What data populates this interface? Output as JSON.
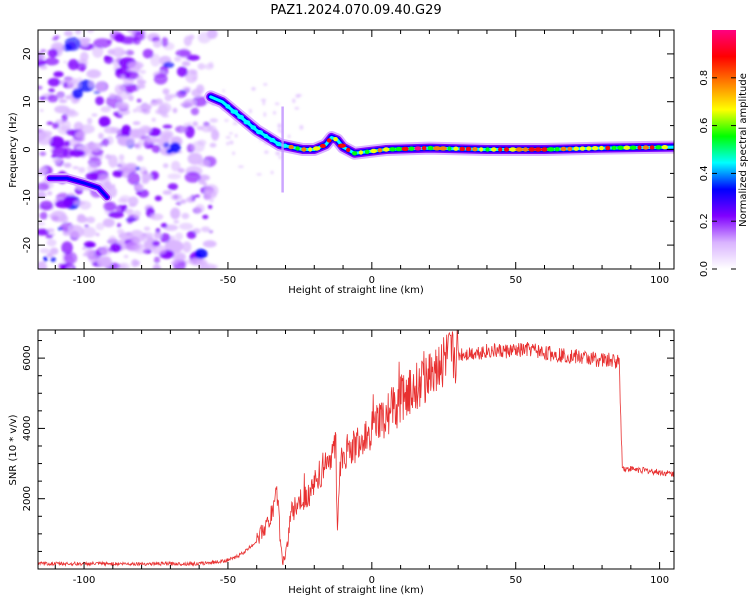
{
  "figure": {
    "title": "PAZ1.2024.070.09.40.G29"
  },
  "chart_data": [
    {
      "type": "heatmap",
      "xlabel": "Height of straight line (km)",
      "ylabel": "Frequency (Hz)",
      "xlim": [
        -116,
        105
      ],
      "ylim": [
        -25,
        25
      ],
      "xticks": [
        -100,
        -50,
        0,
        50,
        100
      ],
      "yticks": [
        -20,
        -10,
        0,
        10,
        20
      ],
      "ridge": [
        {
          "x": -56,
          "y": 11
        },
        {
          "x": -52,
          "y": 10
        },
        {
          "x": -48,
          "y": 8
        },
        {
          "x": -44,
          "y": 6
        },
        {
          "x": -40,
          "y": 4
        },
        {
          "x": -36,
          "y": 2.5
        },
        {
          "x": -32,
          "y": 1
        },
        {
          "x": -28,
          "y": 0.5
        },
        {
          "x": -24,
          "y": 0
        },
        {
          "x": -20,
          "y": 0
        },
        {
          "x": -16,
          "y": 1
        },
        {
          "x": -14,
          "y": 2.5
        },
        {
          "x": -12,
          "y": 2
        },
        {
          "x": -10,
          "y": 0.5
        },
        {
          "x": -6,
          "y": -0.8
        },
        {
          "x": -2,
          "y": -0.5
        },
        {
          "x": 5,
          "y": 0
        },
        {
          "x": 20,
          "y": 0.3
        },
        {
          "x": 40,
          "y": 0
        },
        {
          "x": 60,
          "y": 0
        },
        {
          "x": 80,
          "y": 0.3
        },
        {
          "x": 105,
          "y": 0.5
        }
      ],
      "secondary_ridge": [
        {
          "x": -112,
          "y": -6
        },
        {
          "x": -106,
          "y": -6
        },
        {
          "x": -100,
          "y": -7
        },
        {
          "x": -95,
          "y": -8
        },
        {
          "x": -92,
          "y": -10
        }
      ],
      "colorbar": {
        "label": "Normalized spectral amplitude",
        "range": [
          0,
          1
        ],
        "ticks": [
          "0.0",
          "0.2",
          "0.4",
          "0.6",
          "0.8"
        ],
        "colors": [
          "#ffffff",
          "#d9b3ff",
          "#8000ff",
          "#0000ff",
          "#00ffff",
          "#00ff00",
          "#ffff00",
          "#ff8000",
          "#ff0000",
          "#ff0080"
        ]
      }
    },
    {
      "type": "line",
      "xlabel": "Height of straight line (km)",
      "ylabel": "SNR (10 * v/v)",
      "xlim": [
        -116,
        105
      ],
      "ylim": [
        0,
        6800
      ],
      "xticks": [
        -100,
        -50,
        0,
        50,
        100
      ],
      "yticks": [
        2000,
        4000,
        6000
      ],
      "series": [
        {
          "color": "#e83030",
          "x": [
            -116,
            -100,
            -80,
            -60,
            -52,
            -48,
            -44,
            -40,
            -38,
            -36,
            -34,
            -33,
            -31.5,
            -31,
            -30,
            -28,
            -25,
            -22,
            -20,
            -18,
            -16,
            -14,
            -12.5,
            -12,
            -11,
            -9,
            -6,
            -3,
            0,
            4,
            8,
            12,
            16,
            20,
            25,
            30,
            40,
            50,
            55,
            60,
            70,
            80,
            86,
            87,
            88,
            90,
            95,
            100,
            105
          ],
          "y": [
            150,
            150,
            150,
            150,
            220,
            300,
            500,
            800,
            1100,
            1300,
            1700,
            2300,
            500,
            200,
            350,
            1600,
            1900,
            2100,
            2400,
            2700,
            3000,
            3300,
            3400,
            1000,
            3000,
            3300,
            3500,
            3700,
            3900,
            4300,
            4600,
            5000,
            5300,
            5600,
            5900,
            6100,
            6200,
            6200,
            6250,
            6150,
            6050,
            5950,
            5900,
            2900,
            2850,
            2850,
            2800,
            2750,
            2700
          ]
        }
      ]
    }
  ]
}
